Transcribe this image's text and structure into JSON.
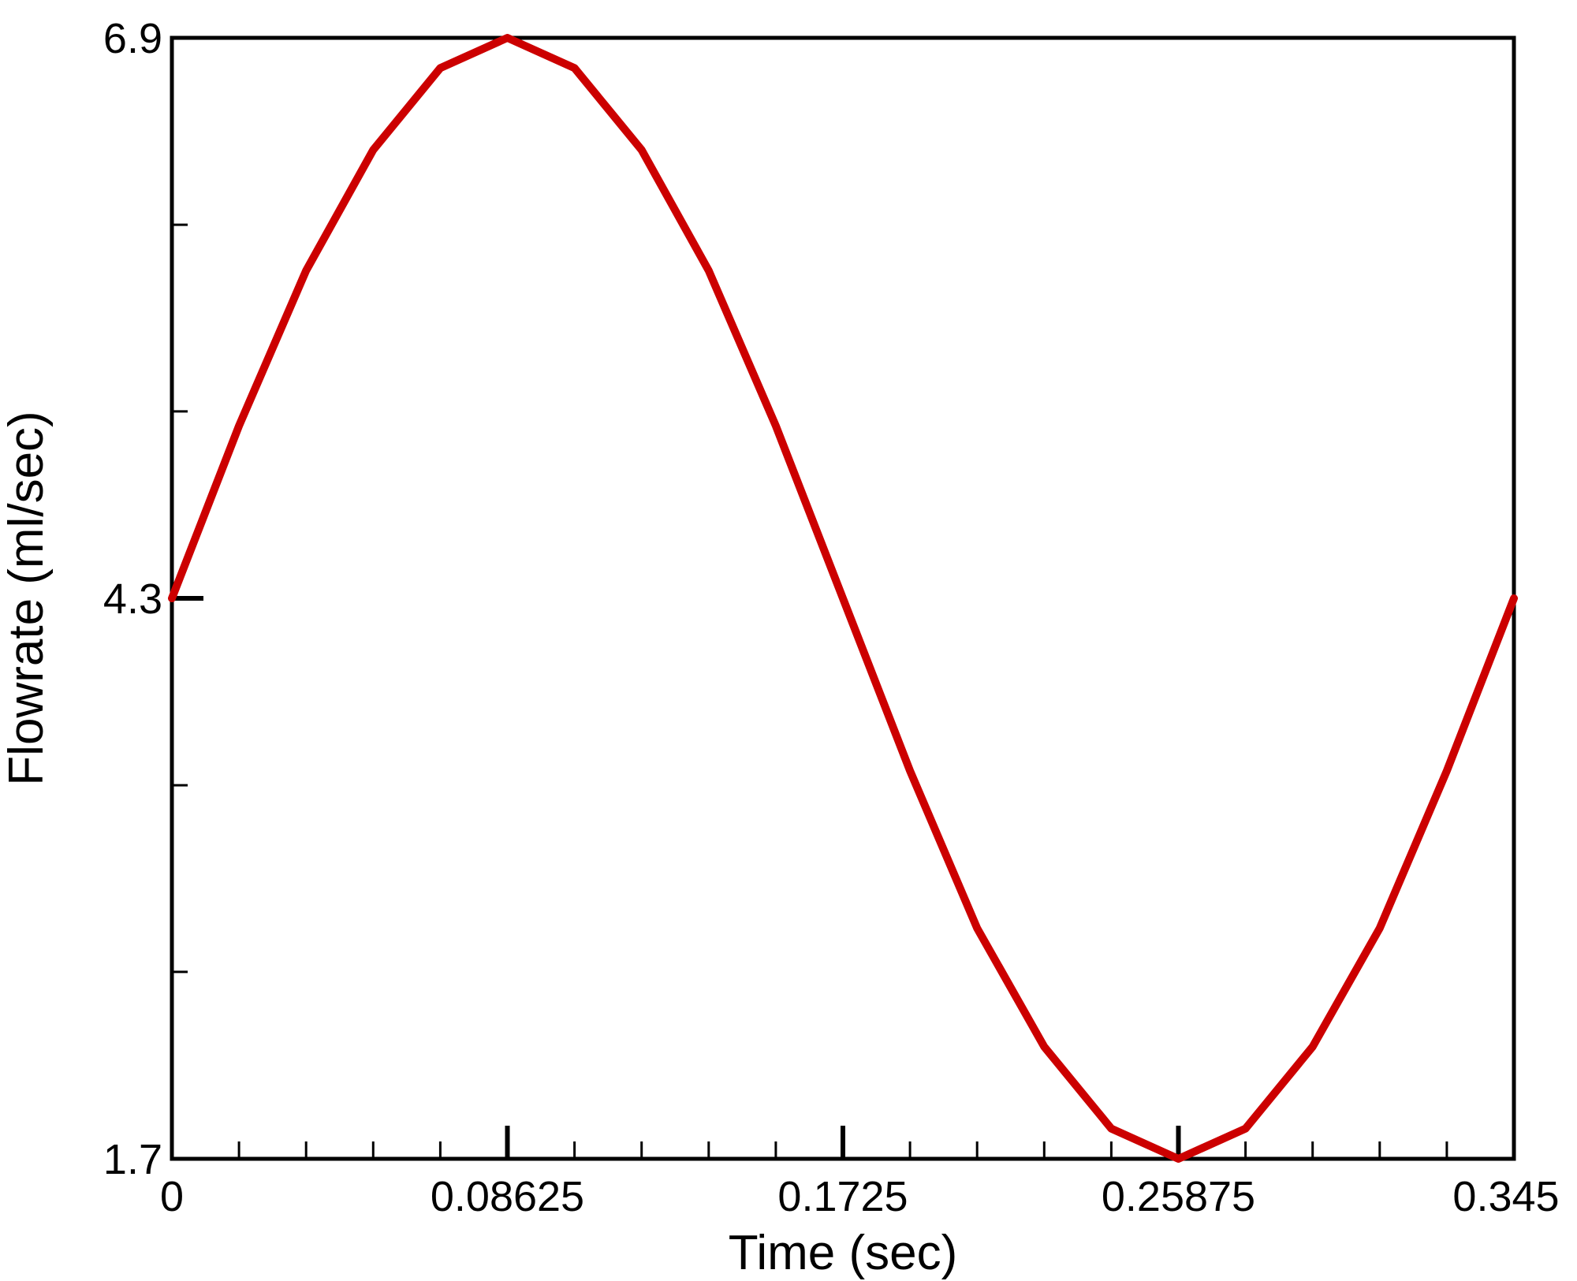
{
  "chart_data": {
    "type": "line",
    "title": "",
    "xlabel": "Time (sec)",
    "ylabel": "Flowrate (ml/sec)",
    "xlim": [
      0,
      0.345
    ],
    "ylim": [
      1.7,
      6.9
    ],
    "x_ticks": [
      0,
      0.08625,
      0.1725,
      0.25875,
      0.345
    ],
    "x_tick_labels": [
      "0",
      "0.08625",
      "0.1725",
      "0.25875",
      "0.345"
    ],
    "x_minor_step": 0.01725,
    "y_ticks": [
      1.7,
      4.3,
      6.9
    ],
    "y_tick_labels": [
      "1.7",
      "4.3",
      "6.9"
    ],
    "y_minor_ticks": [
      2.567,
      3.433,
      5.167,
      6.033
    ],
    "grid": false,
    "legend": "none",
    "line_color": "#cc0000",
    "series": [
      {
        "x": [
          0,
          0.01725,
          0.0345,
          0.05175,
          0.069,
          0.08625,
          0.1035,
          0.12075,
          0.138,
          0.15525,
          0.1725,
          0.18975,
          0.207,
          0.22425,
          0.2415,
          0.25875,
          0.276,
          0.29325,
          0.3105,
          0.32775,
          0.345
        ],
        "y": [
          4.3,
          5.1,
          5.82,
          6.38,
          6.76,
          6.9,
          6.76,
          6.38,
          5.82,
          5.1,
          4.3,
          3.5,
          2.77,
          2.22,
          1.84,
          1.7,
          1.84,
          2.22,
          2.77,
          3.5,
          4.3
        ]
      }
    ]
  }
}
